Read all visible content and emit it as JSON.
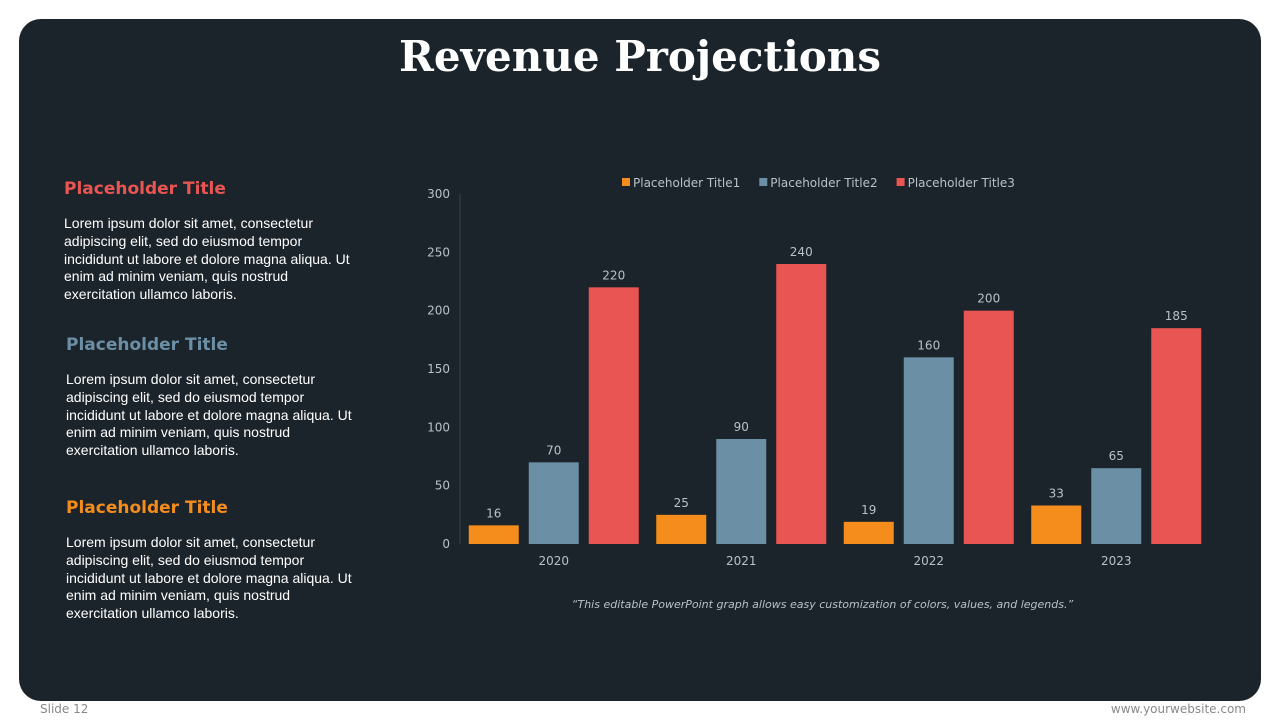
{
  "slide": {
    "title": "Revenue Projections",
    "footer_left": "Slide 12",
    "footer_right": "www.yourwebsite.com",
    "caption": "“This editable PowerPoint graph allows easy customization of colors, values, and legends.”"
  },
  "sections": [
    {
      "title": "Placeholder Title",
      "color": "#e95552",
      "body": "Lorem ipsum dolor sit amet, consectetur adipiscing elit, sed do eiusmod tempor incididunt ut labore et dolore magna aliqua. Ut enim ad minim veniam, quis nostrud exercitation ullamco laboris."
    },
    {
      "title": "Placeholder Title",
      "color": "#6b8fa5",
      "body": "Lorem ipsum dolor sit amet, consectetur adipiscing elit, sed do eiusmod tempor incididunt ut labore et dolore magna aliqua. Ut enim ad minim veniam, quis nostrud exercitation ullamco laboris."
    },
    {
      "title": "Placeholder Title",
      "color": "#f58d1c",
      "body": "Lorem ipsum dolor sit amet, consectetur adipiscing elit, sed do eiusmod tempor incididunt ut labore et dolore magna aliqua. Ut enim ad minim veniam, quis nostrud exercitation ullamco laboris."
    }
  ],
  "chart_data": {
    "type": "bar",
    "title": "",
    "xlabel": "",
    "ylabel": "",
    "categories": [
      "2020",
      "2021",
      "2022",
      "2023"
    ],
    "series": [
      {
        "name": "Placeholder Title1",
        "color": "#f58d1c",
        "values": [
          16,
          25,
          19,
          33
        ]
      },
      {
        "name": "Placeholder Title2",
        "color": "#6b8fa5",
        "values": [
          70,
          90,
          160,
          65
        ]
      },
      {
        "name": "Placeholder Title3",
        "color": "#e95552",
        "values": [
          220,
          240,
          200,
          185
        ]
      }
    ],
    "ylim": [
      0,
      300
    ],
    "yticks": [
      0,
      50,
      100,
      150,
      200,
      250,
      300
    ],
    "grid": false,
    "legend": "top",
    "data_labels": true
  }
}
